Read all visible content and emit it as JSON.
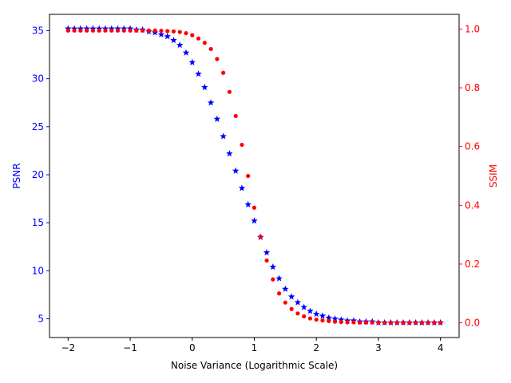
{
  "chart_data": {
    "type": "scatter",
    "title": "",
    "xlabel": "Noise Variance (Logarithmic Scale)",
    "ylabel_left": "PSNR",
    "ylabel_right": "SSIM",
    "xlim": [
      -2.3,
      4.3
    ],
    "ylim_left": [
      3.05,
      36.7
    ],
    "ylim_right": [
      -0.05,
      1.05
    ],
    "x_ticks": [
      -2,
      -1,
      0,
      1,
      2,
      3,
      4
    ],
    "y_ticks_left": [
      5,
      10,
      15,
      20,
      25,
      30,
      35
    ],
    "y_ticks_right": [
      0.0,
      0.2,
      0.4,
      0.6,
      0.8,
      1.0
    ],
    "x_tick_labels": [
      "−2",
      "−1",
      "0",
      "1",
      "2",
      "3",
      "4"
    ],
    "y_tick_labels_left": [
      "5",
      "10",
      "15",
      "20",
      "25",
      "30",
      "35"
    ],
    "y_tick_labels_right": [
      "0.0",
      "0.2",
      "0.4",
      "0.6",
      "0.8",
      "1.0"
    ],
    "grid": false,
    "colors": {
      "psnr": "#0000ff",
      "ssim": "#ff0000",
      "axis": "#000000"
    },
    "series": [
      {
        "axis": "left",
        "marker": "star",
        "color": "#0000ff",
        "x": [
          -2.0,
          -1.9,
          -1.8,
          -1.7,
          -1.6,
          -1.5,
          -1.4,
          -1.3,
          -1.2,
          -1.1,
          -1.0,
          -0.9,
          -0.8,
          -0.7,
          -0.6,
          -0.5,
          -0.4,
          -0.3,
          -0.2,
          -0.1,
          0.0,
          0.1,
          0.2,
          0.3,
          0.4,
          0.5,
          0.6,
          0.7,
          0.8,
          0.9,
          1.0,
          1.1,
          1.2,
          1.3,
          1.4,
          1.5,
          1.6,
          1.7,
          1.8,
          1.9,
          2.0,
          2.1,
          2.2,
          2.3,
          2.4,
          2.5,
          2.6,
          2.7,
          2.8,
          2.9,
          3.0,
          3.1,
          3.2,
          3.3,
          3.4,
          3.5,
          3.6,
          3.7,
          3.8,
          3.9,
          4.0
        ],
        "y": [
          35.2,
          35.2,
          35.2,
          35.2,
          35.2,
          35.2,
          35.2,
          35.2,
          35.2,
          35.2,
          35.2,
          35.1,
          35.1,
          34.9,
          34.8,
          34.6,
          34.4,
          34.0,
          33.5,
          32.7,
          31.7,
          30.5,
          29.1,
          27.5,
          25.8,
          24.0,
          22.2,
          20.4,
          18.6,
          16.9,
          15.2,
          13.5,
          11.9,
          10.4,
          9.2,
          8.1,
          7.3,
          6.7,
          6.2,
          5.8,
          5.5,
          5.3,
          5.1,
          5.0,
          4.9,
          4.8,
          4.8,
          4.7,
          4.7,
          4.7,
          4.6,
          4.6,
          4.6,
          4.6,
          4.6,
          4.6,
          4.6,
          4.6,
          4.6,
          4.6,
          4.6
        ]
      },
      {
        "axis": "right",
        "marker": "dot",
        "color": "#ff0000",
        "x": [
          -2.0,
          -1.9,
          -1.8,
          -1.7,
          -1.6,
          -1.5,
          -1.4,
          -1.3,
          -1.2,
          -1.1,
          -1.0,
          -0.9,
          -0.8,
          -0.7,
          -0.6,
          -0.5,
          -0.4,
          -0.3,
          -0.2,
          -0.1,
          0.0,
          0.1,
          0.2,
          0.3,
          0.4,
          0.5,
          0.6,
          0.7,
          0.8,
          0.9,
          1.0,
          1.1,
          1.2,
          1.3,
          1.4,
          1.5,
          1.6,
          1.7,
          1.8,
          1.9,
          2.0,
          2.1,
          2.2,
          2.3,
          2.4,
          2.5,
          2.6,
          2.7,
          2.8,
          2.9,
          3.0,
          3.1,
          3.2,
          3.3,
          3.4,
          3.5,
          3.6,
          3.7,
          3.8,
          3.9,
          4.0
        ],
        "y": [
          0.995,
          0.995,
          0.995,
          0.995,
          0.995,
          0.995,
          0.995,
          0.995,
          0.995,
          0.995,
          0.995,
          0.995,
          0.995,
          0.995,
          0.995,
          0.994,
          0.993,
          0.992,
          0.99,
          0.986,
          0.979,
          0.968,
          0.953,
          0.932,
          0.898,
          0.851,
          0.786,
          0.704,
          0.606,
          0.5,
          0.392,
          0.293,
          0.212,
          0.148,
          0.1,
          0.069,
          0.047,
          0.032,
          0.022,
          0.015,
          0.011,
          0.008,
          0.006,
          0.004,
          0.003,
          0.002,
          0.002,
          0.001,
          0.001,
          0.001,
          0.001,
          0.0,
          0.0,
          0.0,
          0.0,
          0.0,
          0.0,
          0.0,
          0.0,
          0.0,
          0.0
        ]
      }
    ]
  }
}
